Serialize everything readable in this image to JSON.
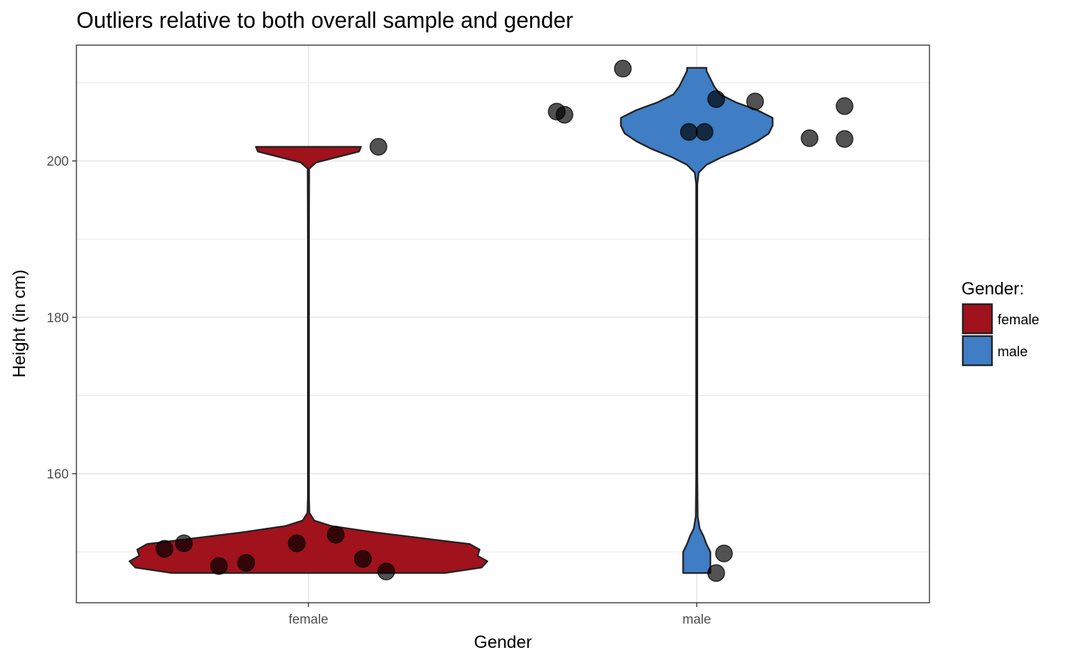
{
  "chart_data": {
    "type": "violin",
    "title": "Outliers relative to both overall sample and gender",
    "xlabel": "Gender",
    "ylabel": "Height (in cm)",
    "categories": [
      "female",
      "male"
    ],
    "ylim": [
      143.5,
      214.8
    ],
    "yticks": [
      160,
      180,
      200
    ],
    "grid": true,
    "legend": {
      "title": "Gender:",
      "placement": "right",
      "entries": [
        {
          "label": "female",
          "color": "#A0121C"
        },
        {
          "label": "male",
          "color": "#3F7DC4"
        }
      ]
    },
    "series": [
      {
        "category": "female",
        "color": "#A0121C",
        "violin_profile": [
          [
            147.3,
            0.7
          ],
          [
            148.0,
            0.89
          ],
          [
            148.8,
            0.92
          ],
          [
            149.5,
            0.87
          ],
          [
            150.3,
            0.88
          ],
          [
            151.0,
            0.83
          ],
          [
            151.7,
            0.6
          ],
          [
            152.5,
            0.34
          ],
          [
            153.3,
            0.12
          ],
          [
            154.0,
            0.03
          ],
          [
            155.0,
            0.005
          ],
          [
            157.0,
            0.003
          ],
          [
            160.0,
            0.003
          ],
          [
            170.0,
            0.003
          ],
          [
            180.0,
            0.003
          ],
          [
            190.0,
            0.003
          ],
          [
            199.0,
            0.004
          ],
          [
            199.8,
            0.04
          ],
          [
            200.5,
            0.15
          ],
          [
            201.2,
            0.26
          ],
          [
            201.8,
            0.27
          ]
        ],
        "points": [
          {
            "x": -0.37,
            "y": 150.4
          },
          {
            "x": -0.32,
            "y": 151.1
          },
          {
            "x": -0.23,
            "y": 148.2
          },
          {
            "x": -0.16,
            "y": 148.6
          },
          {
            "x": -0.03,
            "y": 151.1
          },
          {
            "x": 0.07,
            "y": 152.2
          },
          {
            "x": 0.14,
            "y": 149.1
          },
          {
            "x": 0.2,
            "y": 147.5
          },
          {
            "x": 0.18,
            "y": 201.8
          }
        ]
      },
      {
        "category": "male",
        "color": "#3F7DC4",
        "violin_profile": [
          [
            147.3,
            0.07
          ],
          [
            148.0,
            0.07
          ],
          [
            149.0,
            0.07
          ],
          [
            150.0,
            0.07
          ],
          [
            151.0,
            0.05
          ],
          [
            152.0,
            0.035
          ],
          [
            153.0,
            0.015
          ],
          [
            154.5,
            0.005
          ],
          [
            160.0,
            0.003
          ],
          [
            170.0,
            0.003
          ],
          [
            180.0,
            0.003
          ],
          [
            190.0,
            0.003
          ],
          [
            197.0,
            0.003
          ],
          [
            198.5,
            0.01
          ],
          [
            199.5,
            0.05
          ],
          [
            200.5,
            0.13
          ],
          [
            201.5,
            0.23
          ],
          [
            202.5,
            0.31
          ],
          [
            203.5,
            0.37
          ],
          [
            204.5,
            0.39
          ],
          [
            205.5,
            0.39
          ],
          [
            206.5,
            0.31
          ],
          [
            207.5,
            0.2
          ],
          [
            208.5,
            0.12
          ],
          [
            209.5,
            0.09
          ],
          [
            210.5,
            0.07
          ],
          [
            211.5,
            0.05
          ],
          [
            211.9,
            0.05
          ]
        ],
        "points": [
          {
            "x": -0.36,
            "y": 206.3
          },
          {
            "x": -0.34,
            "y": 205.9
          },
          {
            "x": -0.19,
            "y": 211.8
          },
          {
            "x": -0.02,
            "y": 203.7
          },
          {
            "x": 0.02,
            "y": 203.7
          },
          {
            "x": 0.05,
            "y": 207.9
          },
          {
            "x": 0.15,
            "y": 207.6
          },
          {
            "x": 0.29,
            "y": 202.9
          },
          {
            "x": 0.38,
            "y": 202.8
          },
          {
            "x": 0.38,
            "y": 207.0
          },
          {
            "x": 0.07,
            "y": 149.8
          },
          {
            "x": 0.05,
            "y": 147.3
          }
        ]
      }
    ]
  }
}
